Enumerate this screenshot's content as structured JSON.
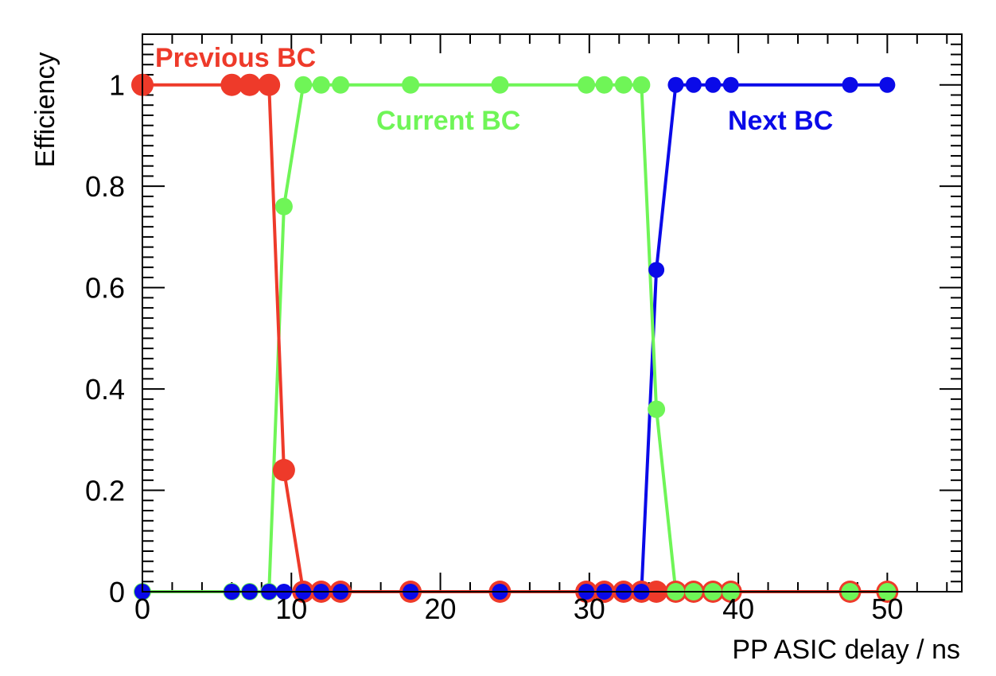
{
  "chart_data": {
    "type": "line",
    "title": "",
    "xlabel": "PP ASIC delay / ns",
    "ylabel": "Efficiency",
    "xlim": [
      0,
      55
    ],
    "ylim": [
      0,
      1.1
    ],
    "x_ticks": [
      0,
      10,
      20,
      30,
      40,
      50
    ],
    "y_ticks": [
      0,
      0.2,
      0.4,
      0.6,
      0.8,
      1
    ],
    "x_tick_labels": [
      "0",
      "10",
      "20",
      "30",
      "40",
      "50"
    ],
    "y_tick_labels": [
      "0",
      "0.2",
      "0.4",
      "0.6",
      "0.8",
      "1"
    ],
    "grid": false,
    "series": [
      {
        "name": "Previous BC",
        "color": "#ee3a2a",
        "x": [
          0,
          6,
          7.2,
          8.5,
          9.5,
          10.8,
          12,
          13.3,
          18,
          24,
          29.8,
          31,
          32.3,
          33.5,
          34.5,
          35.8,
          37,
          38.3,
          39.5,
          47.5,
          50
        ],
        "y": [
          1,
          1,
          1,
          1,
          0.24,
          0,
          0,
          0,
          0,
          0,
          0,
          0,
          0,
          0,
          0,
          0,
          0,
          0,
          0,
          0,
          0
        ]
      },
      {
        "name": "Current BC",
        "color": "#6ff557",
        "x": [
          0,
          6,
          7.2,
          8.5,
          9.5,
          10.8,
          12,
          13.3,
          18,
          24,
          29.8,
          31,
          32.3,
          33.5,
          34.5,
          35.8,
          37,
          38.3,
          39.5,
          47.5,
          50
        ],
        "y": [
          0,
          0,
          0,
          0,
          0.76,
          1,
          1,
          1,
          1,
          1,
          1,
          1,
          1,
          1,
          0.36,
          0,
          0,
          0,
          0,
          0,
          0
        ]
      },
      {
        "name": "Next BC",
        "color": "#0a0ae8",
        "x": [
          0,
          6,
          7.2,
          8.5,
          9.5,
          10.8,
          12,
          13.3,
          18,
          24,
          29.8,
          31,
          32.3,
          33.5,
          34.5,
          35.8,
          37,
          38.3,
          39.5,
          47.5,
          50
        ],
        "y": [
          0,
          0,
          0,
          0,
          0,
          0,
          0,
          0,
          0,
          0,
          0,
          0,
          0,
          0,
          0.635,
          1,
          1,
          1,
          1,
          1,
          1
        ]
      }
    ],
    "labels": [
      {
        "text": "Previous BC",
        "color": "#ee3a2a"
      },
      {
        "text": "Current BC",
        "color": "#6ff557"
      },
      {
        "text": "Next BC",
        "color": "#0a0ae8"
      }
    ]
  }
}
